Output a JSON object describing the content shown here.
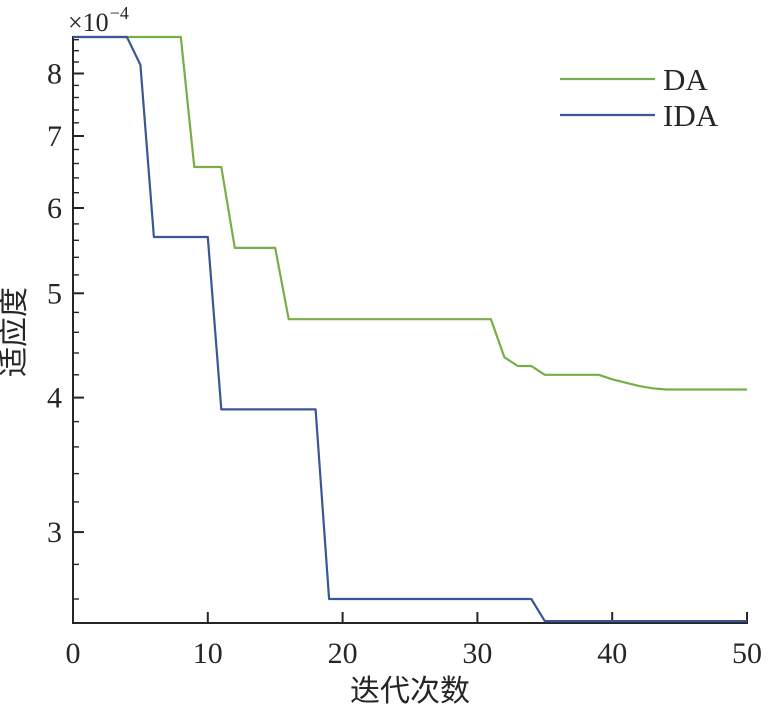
{
  "chart_data": {
    "type": "line",
    "title": "",
    "xlabel": "迭代次数",
    "ylabel": "适应度",
    "y_offset": {
      "base": "×10",
      "exp": "−4"
    },
    "value_unit_multiplier": "1e-4",
    "yscale": "log",
    "grid": false,
    "legend_position": "upper right",
    "legend_frame": false,
    "xlim": [
      0,
      50
    ],
    "ylim_e4": [
      2.47,
      8.65
    ],
    "xticks": [
      0,
      10,
      20,
      30,
      40,
      50
    ],
    "yticks": [
      3,
      4,
      5,
      6,
      7,
      8
    ],
    "y_minor_tick_step": 0.2,
    "x": [
      0,
      1,
      2,
      3,
      4,
      5,
      6,
      7,
      8,
      9,
      10,
      11,
      12,
      13,
      14,
      15,
      16,
      17,
      18,
      19,
      20,
      21,
      22,
      23,
      24,
      25,
      26,
      27,
      28,
      29,
      30,
      31,
      32,
      33,
      34,
      35,
      36,
      37,
      38,
      39,
      40,
      41,
      42,
      43,
      44,
      45,
      46,
      47,
      48,
      49,
      50
    ],
    "series": [
      {
        "name": "DA",
        "color": "#77ad4a",
        "values_e4": [
          8.65,
          8.65,
          8.65,
          8.65,
          8.65,
          8.65,
          8.65,
          8.65,
          8.65,
          6.55,
          6.55,
          6.55,
          5.51,
          5.51,
          5.51,
          5.51,
          4.73,
          4.73,
          4.73,
          4.73,
          4.73,
          4.73,
          4.73,
          4.73,
          4.73,
          4.73,
          4.73,
          4.73,
          4.73,
          4.73,
          4.73,
          4.73,
          4.36,
          4.28,
          4.28,
          4.2,
          4.2,
          4.2,
          4.2,
          4.2,
          4.16,
          4.13,
          4.1,
          4.08,
          4.07,
          4.07,
          4.07,
          4.07,
          4.07,
          4.07,
          4.07
        ]
      },
      {
        "name": "IDA",
        "color": "#3a5795",
        "values_e4": [
          8.65,
          8.65,
          8.65,
          8.65,
          8.65,
          8.15,
          5.64,
          5.64,
          5.64,
          5.64,
          5.64,
          3.9,
          3.9,
          3.9,
          3.9,
          3.9,
          3.9,
          3.9,
          3.9,
          2.6,
          2.6,
          2.6,
          2.6,
          2.6,
          2.6,
          2.6,
          2.6,
          2.6,
          2.6,
          2.6,
          2.6,
          2.6,
          2.6,
          2.6,
          2.6,
          2.48,
          2.48,
          2.48,
          2.48,
          2.48,
          2.48,
          2.48,
          2.48,
          2.48,
          2.48,
          2.48,
          2.48,
          2.48,
          2.48,
          2.48,
          2.48
        ]
      }
    ]
  }
}
